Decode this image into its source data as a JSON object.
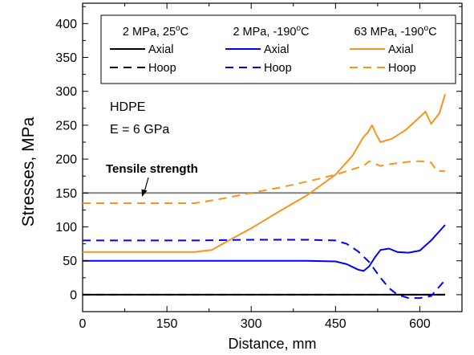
{
  "chart_data": {
    "type": "line",
    "xlabel": "Distance, mm",
    "ylabel": "Stresses, MPa",
    "xlim": [
      0,
      675
    ],
    "ylim": [
      -25,
      430
    ],
    "xticks": [
      0,
      150,
      300,
      450,
      600
    ],
    "yticks": [
      0,
      50,
      100,
      150,
      200,
      250,
      300,
      350,
      400
    ],
    "grid": false,
    "legend_placement": "top",
    "legend_groups": [
      {
        "heading_pre": "2 MPa, 25",
        "heading_sup": "o",
        "heading_post": "C"
      },
      {
        "heading_pre": "2 MPa, -190",
        "heading_sup": "o",
        "heading_post": "C"
      },
      {
        "heading_pre": "63 MPa, -190",
        "heading_sup": "o",
        "heading_post": "C"
      }
    ],
    "legend_rows": [
      "Axial",
      "Hoop"
    ],
    "annotations": {
      "material": "HDPE",
      "modulus": "E = 6 GPa",
      "tensile_label": "Tensile strength",
      "tensile_value": 150
    },
    "series": [
      {
        "group": "2 MPa, 25°C",
        "kind": "Axial",
        "color": "#000000",
        "dash": false,
        "x": [
          0,
          100,
          200,
          300,
          400,
          500,
          600,
          645
        ],
        "y": [
          0,
          0,
          0,
          0,
          0,
          0,
          0,
          0
        ]
      },
      {
        "group": "2 MPa, 25°C",
        "kind": "Hoop",
        "color": "#000000",
        "dash": true,
        "x": [
          0,
          100,
          200,
          300,
          400,
          500,
          600,
          645
        ],
        "y": [
          0,
          0,
          0,
          0,
          0,
          0,
          0,
          0
        ]
      },
      {
        "group": "2 MPa, -190°C",
        "kind": "Axial",
        "color": "#0000ff",
        "dash": false,
        "x": [
          0,
          100,
          200,
          300,
          400,
          450,
          470,
          490,
          500,
          510,
          520,
          530,
          545,
          560,
          580,
          600,
          620,
          645
        ],
        "y": [
          50,
          50,
          50,
          50,
          50,
          49,
          45,
          37,
          35,
          42,
          55,
          66,
          68,
          63,
          62,
          65,
          80,
          103
        ]
      },
      {
        "group": "2 MPa, -190°C",
        "kind": "Hoop",
        "color": "#0000ff",
        "dash": true,
        "x": [
          0,
          100,
          200,
          300,
          400,
          450,
          470,
          490,
          510,
          530,
          545,
          560,
          580,
          600,
          620,
          640,
          645
        ],
        "y": [
          80,
          80,
          80,
          81,
          81,
          80,
          75,
          64,
          48,
          25,
          10,
          0,
          -5,
          -5,
          -2,
          17,
          22
        ]
      },
      {
        "group": "63 MPa, -190°C",
        "kind": "Axial",
        "color": "#f7941d",
        "dash": false,
        "x": [
          0,
          100,
          200,
          230,
          260,
          300,
          350,
          400,
          450,
          480,
          500,
          508,
          515,
          522,
          530,
          550,
          575,
          600,
          610,
          620,
          635,
          645
        ],
        "y": [
          63,
          63,
          63,
          66,
          80,
          98,
          123,
          147,
          177,
          205,
          233,
          240,
          250,
          237,
          225,
          230,
          243,
          262,
          270,
          252,
          268,
          296
        ]
      },
      {
        "group": "63 MPa, -190°C",
        "kind": "Hoop",
        "color": "#f7941d",
        "dash": true,
        "x": [
          0,
          100,
          200,
          250,
          300,
          350,
          400,
          450,
          480,
          500,
          510,
          520,
          530,
          550,
          580,
          600,
          620,
          630,
          645
        ],
        "y": [
          135,
          135,
          135,
          142,
          150,
          158,
          167,
          177,
          185,
          190,
          197,
          193,
          190,
          193,
          196,
          197,
          195,
          183,
          182
        ]
      }
    ]
  }
}
